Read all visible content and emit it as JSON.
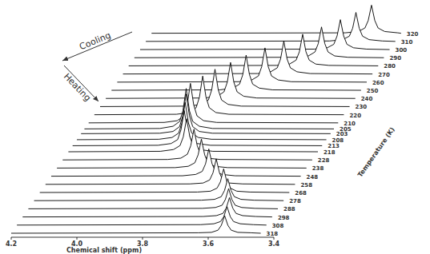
{
  "chart_data": {
    "type": "line",
    "xlabel": "Chemical shift (ppm)",
    "zlabel": "Temperature (K)",
    "annotations": [
      "Cooling",
      "Heating"
    ],
    "xlim": [
      4.2,
      3.4
    ],
    "xticks": [
      4.2,
      {
        "value": 4,
        "label": "4.0"
      },
      3.8,
      3.6,
      3.4
    ],
    "ylim": [
      0,
      100
    ],
    "tick_labels": "x",
    "color": "#000000",
    "series": [
      {
        "name": "318",
        "x": [
          4.2,
          3.63,
          3.59,
          3.57,
          3.56,
          3.55,
          3.54,
          3.53,
          3.51,
          3.47,
          3.44
        ],
        "values": [
          0,
          1,
          2,
          7,
          18,
          40,
          18,
          7,
          2,
          1,
          0
        ]
      },
      {
        "name": "308",
        "x": [
          4.2,
          3.64,
          3.6,
          3.58,
          3.57,
          3.56,
          3.55,
          3.54,
          3.52,
          3.48,
          3.44
        ],
        "values": [
          0,
          1,
          3,
          8,
          19,
          42,
          19,
          8,
          3,
          1,
          0
        ]
      },
      {
        "name": "298",
        "x": [
          4.2,
          3.65,
          3.61,
          3.59,
          3.58,
          3.57,
          3.56,
          3.55,
          3.53,
          3.49,
          3.44
        ],
        "values": [
          0,
          1,
          3,
          8,
          20,
          44,
          20,
          8,
          3,
          1,
          0
        ]
      },
      {
        "name": "288",
        "x": [
          4.2,
          3.67,
          3.63,
          3.61,
          3.6,
          3.59,
          3.58,
          3.57,
          3.55,
          3.51,
          3.44
        ],
        "values": [
          0,
          1,
          3,
          8,
          21,
          46,
          21,
          8,
          3,
          1,
          0
        ]
      },
      {
        "name": "278",
        "x": [
          4.2,
          3.69,
          3.65,
          3.63,
          3.62,
          3.61,
          3.6,
          3.59,
          3.57,
          3.53,
          3.44
        ],
        "values": [
          0,
          1,
          3,
          9,
          23,
          50,
          23,
          9,
          3,
          1,
          0
        ]
      },
      {
        "name": "268",
        "x": [
          4.2,
          3.72,
          3.68,
          3.66,
          3.65,
          3.64,
          3.63,
          3.62,
          3.6,
          3.56,
          3.44
        ],
        "values": [
          0,
          1,
          3,
          10,
          24,
          54,
          24,
          10,
          3,
          1,
          0
        ]
      },
      {
        "name": "258",
        "x": [
          4.2,
          3.76,
          3.72,
          3.7,
          3.69,
          3.68,
          3.67,
          3.66,
          3.64,
          3.6,
          3.44
        ],
        "values": [
          0,
          1,
          3,
          10,
          26,
          58,
          26,
          10,
          3,
          1,
          0
        ]
      },
      {
        "name": "248",
        "x": [
          4.2,
          3.8,
          3.76,
          3.74,
          3.73,
          3.72,
          3.71,
          3.7,
          3.68,
          3.64,
          3.44
        ],
        "values": [
          0,
          1,
          4,
          11,
          28,
          62,
          28,
          11,
          4,
          1,
          0
        ]
      },
      {
        "name": "238",
        "x": [
          4.2,
          3.84,
          3.8,
          3.78,
          3.77,
          3.76,
          3.75,
          3.74,
          3.72,
          3.68,
          3.44
        ],
        "values": [
          0,
          1,
          4,
          12,
          30,
          66,
          30,
          12,
          4,
          1,
          0
        ]
      },
      {
        "name": "228",
        "x": [
          4.2,
          3.88,
          3.84,
          3.82,
          3.81,
          3.8,
          3.79,
          3.78,
          3.76,
          3.72,
          3.44
        ],
        "values": [
          0,
          1,
          4,
          13,
          32,
          70,
          32,
          13,
          4,
          1,
          0
        ]
      },
      {
        "name": "218",
        "x": [
          4.2,
          3.92,
          3.88,
          3.86,
          3.85,
          3.84,
          3.83,
          3.82,
          3.8,
          3.76,
          3.44
        ],
        "values": [
          0,
          1,
          5,
          14,
          34,
          75,
          34,
          14,
          5,
          1,
          0
        ]
      },
      {
        "name": "213",
        "x": [
          4.2,
          3.94,
          3.9,
          3.88,
          3.87,
          3.86,
          3.85,
          3.84,
          3.82,
          3.78,
          3.44
        ],
        "values": [
          0,
          1,
          5,
          14,
          36,
          80,
          36,
          14,
          5,
          1,
          0
        ]
      },
      {
        "name": "208",
        "x": [
          4.2,
          3.95,
          3.91,
          3.89,
          3.88,
          3.87,
          3.86,
          3.85,
          3.83,
          3.79,
          3.44
        ],
        "values": [
          0,
          1,
          5,
          15,
          38,
          85,
          38,
          15,
          5,
          1,
          0
        ]
      },
      {
        "name": "203",
        "x": [
          4.2,
          3.96,
          3.92,
          3.9,
          3.89,
          3.88,
          3.87,
          3.86,
          3.84,
          3.8,
          3.44
        ],
        "values": [
          0,
          1,
          5,
          16,
          41,
          90,
          41,
          16,
          5,
          1,
          0
        ]
      },
      {
        "name": "205",
        "x": [
          4.2,
          3.97,
          3.93,
          3.91,
          3.9,
          3.89,
          3.88,
          3.87,
          3.85,
          3.81,
          3.44
        ],
        "values": [
          0,
          1,
          6,
          17,
          41,
          92,
          41,
          17,
          6,
          1,
          0
        ]
      },
      {
        "name": "210",
        "x": [
          4.2,
          3.97,
          3.93,
          3.91,
          3.9,
          3.89,
          3.88,
          3.87,
          3.85,
          3.81,
          3.44
        ],
        "values": [
          0,
          1,
          5,
          16,
          41,
          90,
          41,
          16,
          5,
          1,
          0
        ]
      },
      {
        "name": "220",
        "x": [
          4.2,
          3.95,
          3.91,
          3.89,
          3.88,
          3.87,
          3.86,
          3.85,
          3.83,
          3.79,
          3.44
        ],
        "values": [
          0,
          1,
          5,
          16,
          40,
          88,
          40,
          16,
          5,
          1,
          0
        ]
      },
      {
        "name": "230",
        "x": [
          4.2,
          3.93,
          3.89,
          3.87,
          3.86,
          3.85,
          3.84,
          3.83,
          3.81,
          3.77,
          3.44
        ],
        "values": [
          0,
          1,
          5,
          15,
          38,
          85,
          38,
          15,
          5,
          1,
          0
        ]
      },
      {
        "name": "240",
        "x": [
          4.2,
          3.9,
          3.86,
          3.84,
          3.83,
          3.82,
          3.81,
          3.8,
          3.78,
          3.74,
          3.44
        ],
        "values": [
          0,
          1,
          5,
          15,
          37,
          82,
          37,
          15,
          5,
          1,
          0
        ]
      },
      {
        "name": "250",
        "x": [
          4.2,
          3.87,
          3.83,
          3.81,
          3.8,
          3.79,
          3.78,
          3.77,
          3.75,
          3.71,
          3.44
        ],
        "values": [
          0,
          1,
          5,
          14,
          36,
          80,
          36,
          14,
          5,
          1,
          0
        ]
      },
      {
        "name": "260",
        "x": [
          4.2,
          3.83,
          3.79,
          3.77,
          3.76,
          3.75,
          3.74,
          3.73,
          3.71,
          3.67,
          3.44
        ],
        "values": [
          0,
          1,
          5,
          14,
          35,
          78,
          35,
          14,
          5,
          1,
          0
        ]
      },
      {
        "name": "270",
        "x": [
          4.2,
          3.79,
          3.75,
          3.73,
          3.72,
          3.71,
          3.7,
          3.69,
          3.67,
          3.63,
          3.44
        ],
        "values": [
          0,
          1,
          5,
          14,
          34,
          75,
          34,
          14,
          5,
          1,
          0
        ]
      },
      {
        "name": "280",
        "x": [
          4.2,
          3.75,
          3.71,
          3.69,
          3.68,
          3.67,
          3.66,
          3.65,
          3.63,
          3.59,
          3.44
        ],
        "values": [
          0,
          1,
          4,
          13,
          32,
          72,
          32,
          13,
          4,
          1,
          0
        ]
      },
      {
        "name": "290",
        "x": [
          4.2,
          3.71,
          3.67,
          3.65,
          3.64,
          3.63,
          3.62,
          3.61,
          3.59,
          3.55,
          3.44
        ],
        "values": [
          0,
          1,
          4,
          13,
          32,
          70,
          32,
          13,
          4,
          1,
          0
        ]
      },
      {
        "name": "300",
        "x": [
          4.2,
          3.67,
          3.63,
          3.61,
          3.6,
          3.59,
          3.58,
          3.57,
          3.55,
          3.51,
          3.44
        ],
        "values": [
          0,
          1,
          4,
          12,
          31,
          68,
          31,
          12,
          4,
          1,
          0
        ]
      },
      {
        "name": "310",
        "x": [
          4.2,
          3.64,
          3.6,
          3.58,
          3.57,
          3.56,
          3.55,
          3.54,
          3.52,
          3.48,
          3.44
        ],
        "values": [
          0,
          1,
          4,
          12,
          30,
          66,
          30,
          12,
          4,
          1,
          0
        ]
      },
      {
        "name": "320",
        "x": [
          4.2,
          3.61,
          3.57,
          3.55,
          3.54,
          3.53,
          3.52,
          3.51,
          3.49,
          3.45,
          3.44
        ],
        "values": [
          0,
          1,
          4,
          12,
          29,
          64,
          29,
          12,
          4,
          1,
          0
        ]
      }
    ]
  }
}
